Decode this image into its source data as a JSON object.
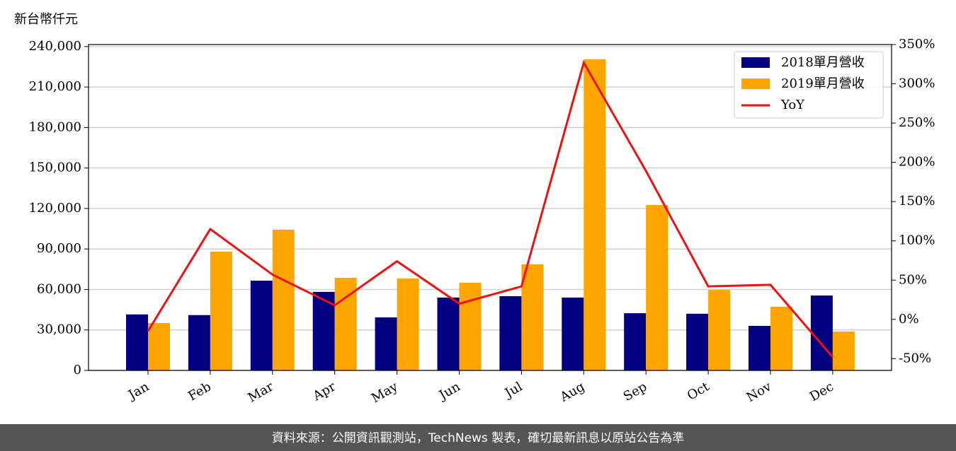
{
  "chart_data": {
    "type": "bar_line",
    "y_axis_label": "新台幣仟元",
    "categories": [
      "Jan",
      "Feb",
      "Mar",
      "Apr",
      "May",
      "Jun",
      "Jul",
      "Aug",
      "Sep",
      "Oct",
      "Nov",
      "Dec"
    ],
    "series": [
      {
        "name": "2018單月營收",
        "color": "#000080",
        "type": "bar",
        "values": [
          41500,
          41000,
          66500,
          58200,
          39300,
          54000,
          55000,
          54000,
          42400,
          42000,
          33000,
          55500
        ]
      },
      {
        "name": "2019單月營收",
        "color": "#ffa500",
        "type": "bar",
        "values": [
          35100,
          88000,
          104300,
          68600,
          68100,
          65000,
          78600,
          230600,
          122600,
          59700,
          47200,
          28800
        ]
      },
      {
        "name": "YoY",
        "color": "#ee1111",
        "type": "line",
        "axis": "y2",
        "values": [
          -15,
          115,
          57,
          18,
          74,
          20,
          42,
          327,
          189,
          42,
          44,
          -48
        ]
      }
    ],
    "ylim": [
      0,
      241500
    ],
    "yticks": [
      0,
      {
        "value": 30000,
        "label": "30,000"
      },
      {
        "value": 60000,
        "label": "60,000"
      },
      {
        "value": 90000,
        "label": "90,000"
      },
      {
        "value": 120000,
        "label": "120,000"
      },
      {
        "value": 150000,
        "label": "150,000"
      },
      {
        "value": 180000,
        "label": "180,000"
      },
      {
        "value": 210000,
        "label": "210,000"
      },
      {
        "value": 240000,
        "label": "240,000"
      }
    ],
    "y2lim": [
      -65,
      350
    ],
    "y2ticks": [
      {
        "value": -50,
        "label": "-50%"
      },
      {
        "value": 0,
        "label": "0%"
      },
      {
        "value": 50,
        "label": "50%"
      },
      {
        "value": 100,
        "label": "100%"
      },
      {
        "value": 150,
        "label": "150%"
      },
      {
        "value": 200,
        "label": "200%"
      },
      {
        "value": 250,
        "label": "250%"
      },
      {
        "value": 300,
        "label": "300%"
      },
      {
        "value": 350,
        "label": "350%"
      }
    ],
    "grid": true,
    "legend": "upper right",
    "footer": "資料來源：公開資訊觀測站，TechNews 製表，確切最新訊息以原站公告為準"
  }
}
